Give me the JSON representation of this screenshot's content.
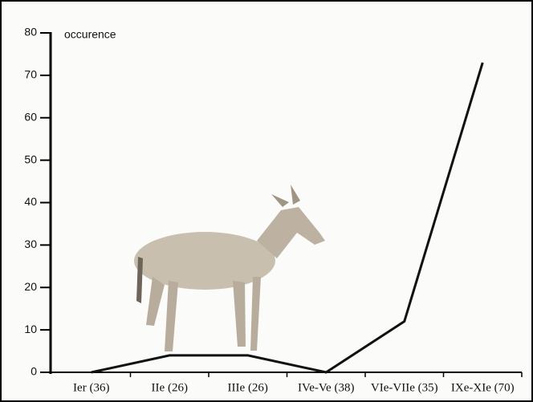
{
  "chart_data": {
    "type": "line",
    "y_label": "occurence",
    "categories": [
      "Ier (36)",
      "IIe (26)",
      "IIIe (26)",
      "IVe-Ve (38)",
      "VIe-VIIe (35)",
      "IXe-XIe (70)"
    ],
    "values": [
      0,
      4,
      4,
      0,
      12,
      73
    ],
    "color": "#111111",
    "ylim": [
      0,
      80
    ],
    "yticks": [
      0,
      10,
      20,
      30,
      40,
      50,
      60,
      70,
      80
    ]
  }
}
